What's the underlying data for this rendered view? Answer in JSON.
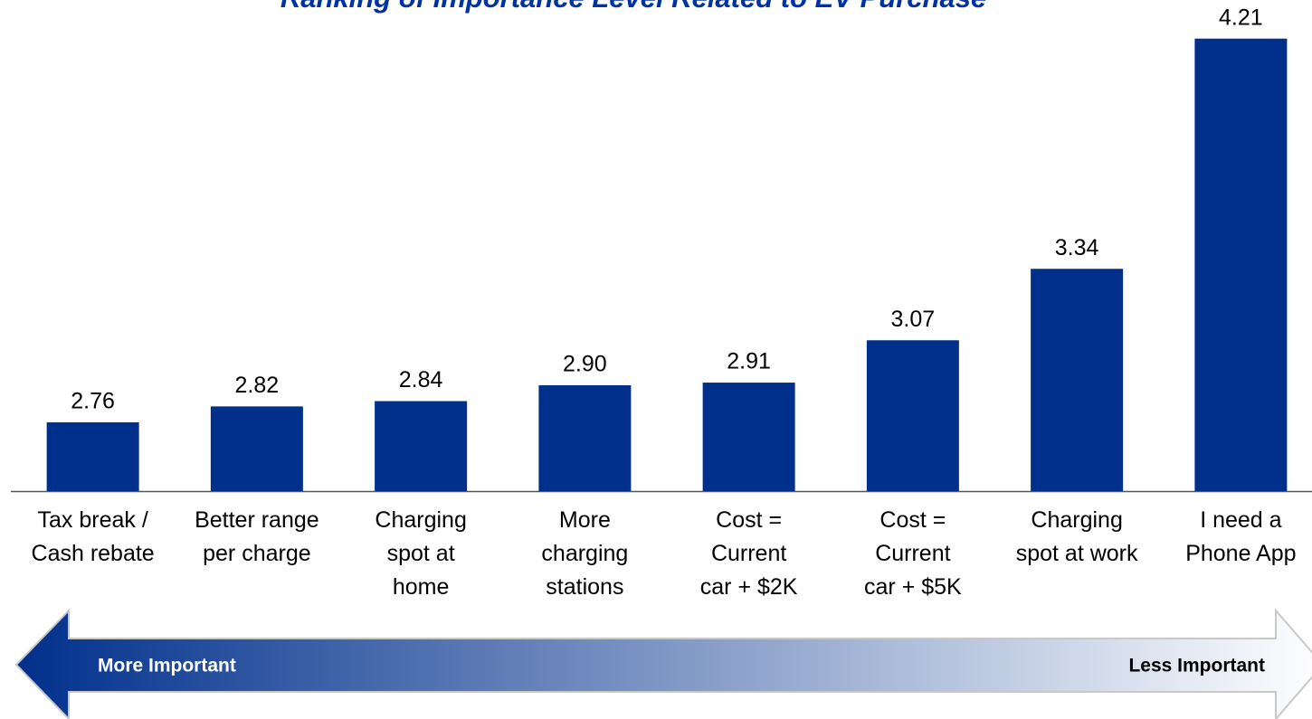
{
  "chart_data": {
    "type": "bar",
    "title": "Ranking of Importance Level Related to EV Purchase",
    "categories": [
      "Tax break /\nCash rebate",
      "Better range\nper charge",
      "Charging\nspot at\nhome",
      "More\ncharging\nstations",
      "Cost =\nCurrent\ncar + $2K",
      "Cost =\nCurrent\ncar + $5K",
      "Charging\nspot at work",
      "I need a\nPhone App"
    ],
    "values": [
      2.76,
      2.82,
      2.84,
      2.9,
      2.91,
      3.07,
      3.34,
      4.21
    ],
    "value_labels": [
      "2.76",
      "2.82",
      "2.84",
      "2.90",
      "2.91",
      "3.07",
      "3.34",
      "4.21"
    ],
    "color": "#00308c",
    "ylim": [
      2.5,
      4.25
    ],
    "annotations": [
      "More Important",
      "Less Important"
    ]
  }
}
